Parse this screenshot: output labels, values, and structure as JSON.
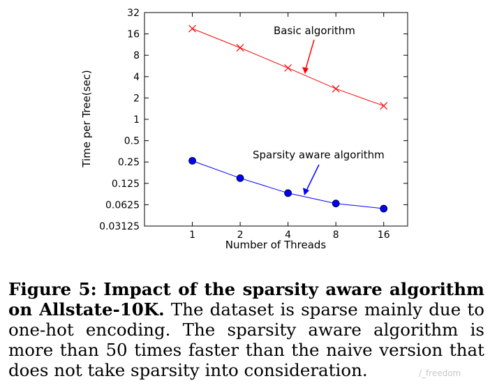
{
  "chart_data": {
    "type": "line",
    "xlabel": "Number of Threads",
    "ylabel": "Time per Tree(sec)",
    "x": [
      1,
      2,
      4,
      8,
      16
    ],
    "x_ticks": [
      "1",
      "2",
      "4",
      "8",
      "16"
    ],
    "y_scale": "log2",
    "ylim": [
      0.03125,
      32
    ],
    "y_ticks": [
      "32",
      "16",
      "8",
      "4",
      "2",
      "1",
      "0.5",
      "0.25",
      "0.125",
      "0.0625",
      "0.03125"
    ],
    "grid": false,
    "series": [
      {
        "name": "Basic algorithm",
        "marker": "x",
        "color": "#ff0000",
        "values": [
          19,
          10.2,
          5.3,
          2.7,
          1.55
        ]
      },
      {
        "name": "Sparsity aware algorithm",
        "marker": "circle",
        "color": "#0000ff",
        "values": [
          0.26,
          0.148,
          0.091,
          0.065,
          0.055
        ]
      }
    ],
    "annotations": [
      {
        "text": "Basic algorithm",
        "arrow_color": "#ff0000"
      },
      {
        "text": "Sparsity aware algorithm",
        "arrow_color": "#0000ff"
      }
    ]
  },
  "caption": {
    "label": "Figure 5:",
    "title": "Impact of the sparsity aware algorithm on Allstate-10K.",
    "body": "The dataset is sparse mainly due to one-hot encoding. The sparsity aware algorithm is more than 50 times faster than the naive version that does not take sparsity into consideration."
  },
  "watermark": "/_freedom"
}
